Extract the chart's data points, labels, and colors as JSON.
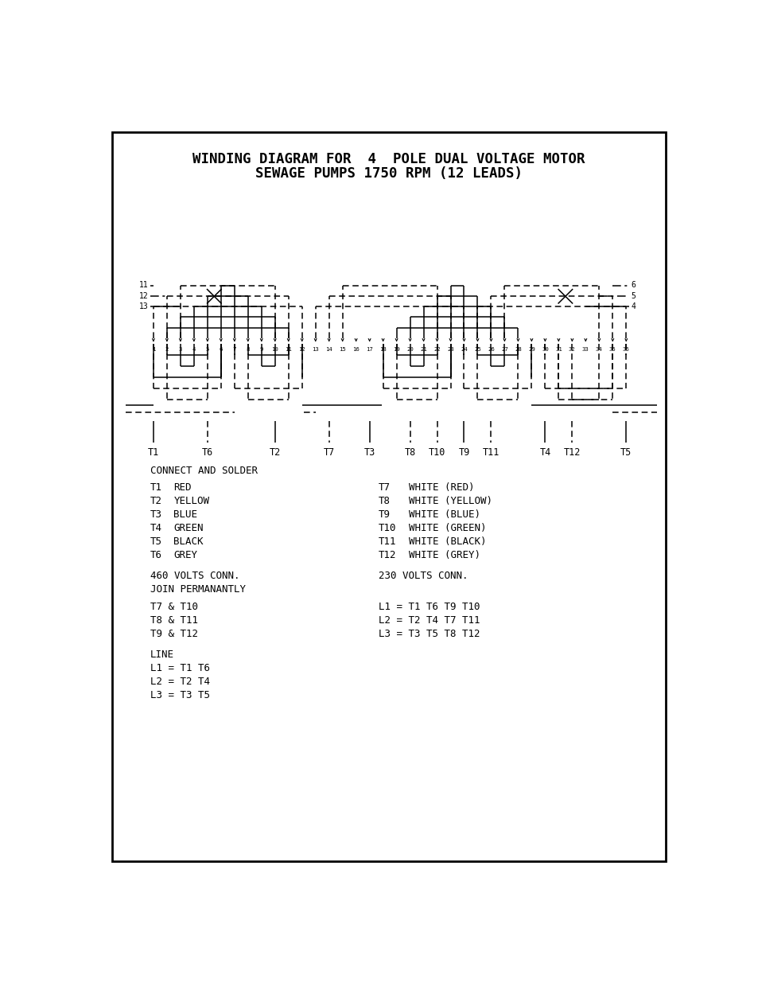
{
  "title_line1": "WINDING DIAGRAM FOR  4  POLE DUAL VOLTAGE MOTOR",
  "title_line2": "SEWAGE PUMPS 1750 RPM (12 LEADS)",
  "connect_solder": "CONNECT AND SOLDER",
  "left_labels": [
    [
      "T1",
      "RED"
    ],
    [
      "T2",
      "YELLOW"
    ],
    [
      "T3",
      "BLUE"
    ],
    [
      "T4",
      "GREEN"
    ],
    [
      "T5",
      "BLACK"
    ],
    [
      "T6",
      "GREY"
    ]
  ],
  "right_labels": [
    [
      "T7",
      "WHITE (RED)"
    ],
    [
      "T8",
      "WHITE (YELLOW)"
    ],
    [
      "T9",
      "WHITE (BLUE)"
    ],
    [
      "T10",
      "WHITE (GREEN)"
    ],
    [
      "T11",
      "WHITE (BLACK)"
    ],
    [
      "T12",
      "WHITE (GREY)"
    ]
  ],
  "v460_header": "460 VOLTS CONN.",
  "v460_sub": "JOIN PERMANANTLY",
  "v460_joins": [
    "T7 & T10",
    "T8 & T11",
    "T9 & T12"
  ],
  "v460_line_header": "LINE",
  "v460_lines": [
    "L1 = T1 T6",
    "L2 = T2 T4",
    "L3 = T3 T5"
  ],
  "v230_header": "230 VOLTS CONN.",
  "v230_lines": [
    "L1 = T1 T6 T9 T10",
    "L2 = T2 T4 T7 T11",
    "L3 = T3 T5 T8 T12"
  ],
  "slot_numbers": [
    "1",
    "2",
    "3",
    "4",
    "5",
    "6",
    "7",
    "8",
    "9",
    "10",
    "11",
    "12",
    "13",
    "14",
    "15",
    "16",
    "17",
    "18",
    "19",
    "20",
    "21",
    "22",
    "23",
    "24",
    "25",
    "26",
    "27",
    "28",
    "29",
    "30",
    "31",
    "32",
    "33",
    "34",
    "35",
    "36"
  ],
  "terminal_labels": [
    "T1",
    "T6",
    "T2",
    "T7",
    "T3",
    "T8",
    "T10",
    "T9",
    "T11",
    "T4",
    "T12",
    "T5"
  ],
  "left_edge_labels": [
    "11",
    "12",
    "13"
  ],
  "right_edge_labels": [
    "6",
    "5",
    "4"
  ]
}
